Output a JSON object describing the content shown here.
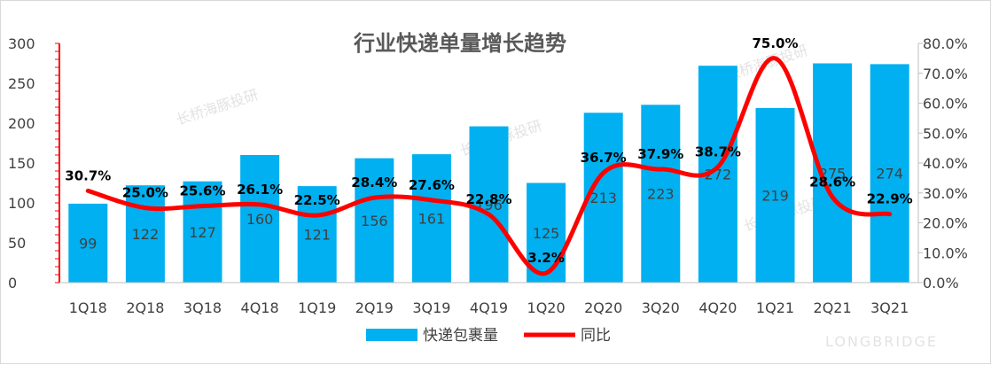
{
  "chart_data": {
    "type": "bar+line",
    "title": "行业快递单量增长趋势",
    "categories": [
      "1Q18",
      "2Q18",
      "3Q18",
      "4Q18",
      "1Q19",
      "2Q19",
      "3Q19",
      "4Q19",
      "1Q20",
      "2Q20",
      "3Q20",
      "4Q20",
      "1Q21",
      "2Q21",
      "3Q21"
    ],
    "series": [
      {
        "name": "快递包裹量",
        "kind": "bar",
        "axis": "left",
        "color": "#00b0f0",
        "values": [
          99,
          122,
          127,
          160,
          121,
          156,
          161,
          196,
          125,
          213,
          223,
          272,
          219,
          275,
          274
        ]
      },
      {
        "name": "同比",
        "kind": "line",
        "axis": "right",
        "color": "#ff0000",
        "values": [
          30.7,
          25.0,
          25.6,
          26.1,
          22.5,
          28.4,
          27.6,
          22.8,
          3.2,
          36.7,
          37.9,
          38.7,
          75.0,
          28.6,
          22.9
        ],
        "labels": [
          "30.7%",
          "25.0%",
          "25.6%",
          "26.1%",
          "22.5%",
          "28.4%",
          "27.6%",
          "22.8%",
          "3.2%",
          "36.7%",
          "37.9%",
          "38.7%",
          "75.0%",
          "28.6%",
          "22.9%"
        ]
      }
    ],
    "y_left": {
      "ylim": [
        0,
        300
      ],
      "ticks": [
        "0",
        "50",
        "100",
        "150",
        "200",
        "250",
        "300"
      ]
    },
    "y_right": {
      "ylim": [
        0,
        80
      ],
      "ticks": [
        "0.0%",
        "10.0%",
        "20.0%",
        "30.0%",
        "40.0%",
        "50.0%",
        "60.0%",
        "70.0%",
        "80.0%"
      ]
    },
    "legend_position": "bottom",
    "grid": false
  },
  "watermark": {
    "text": "长桥海豚投研",
    "logo": "LONGBRIDGE"
  }
}
